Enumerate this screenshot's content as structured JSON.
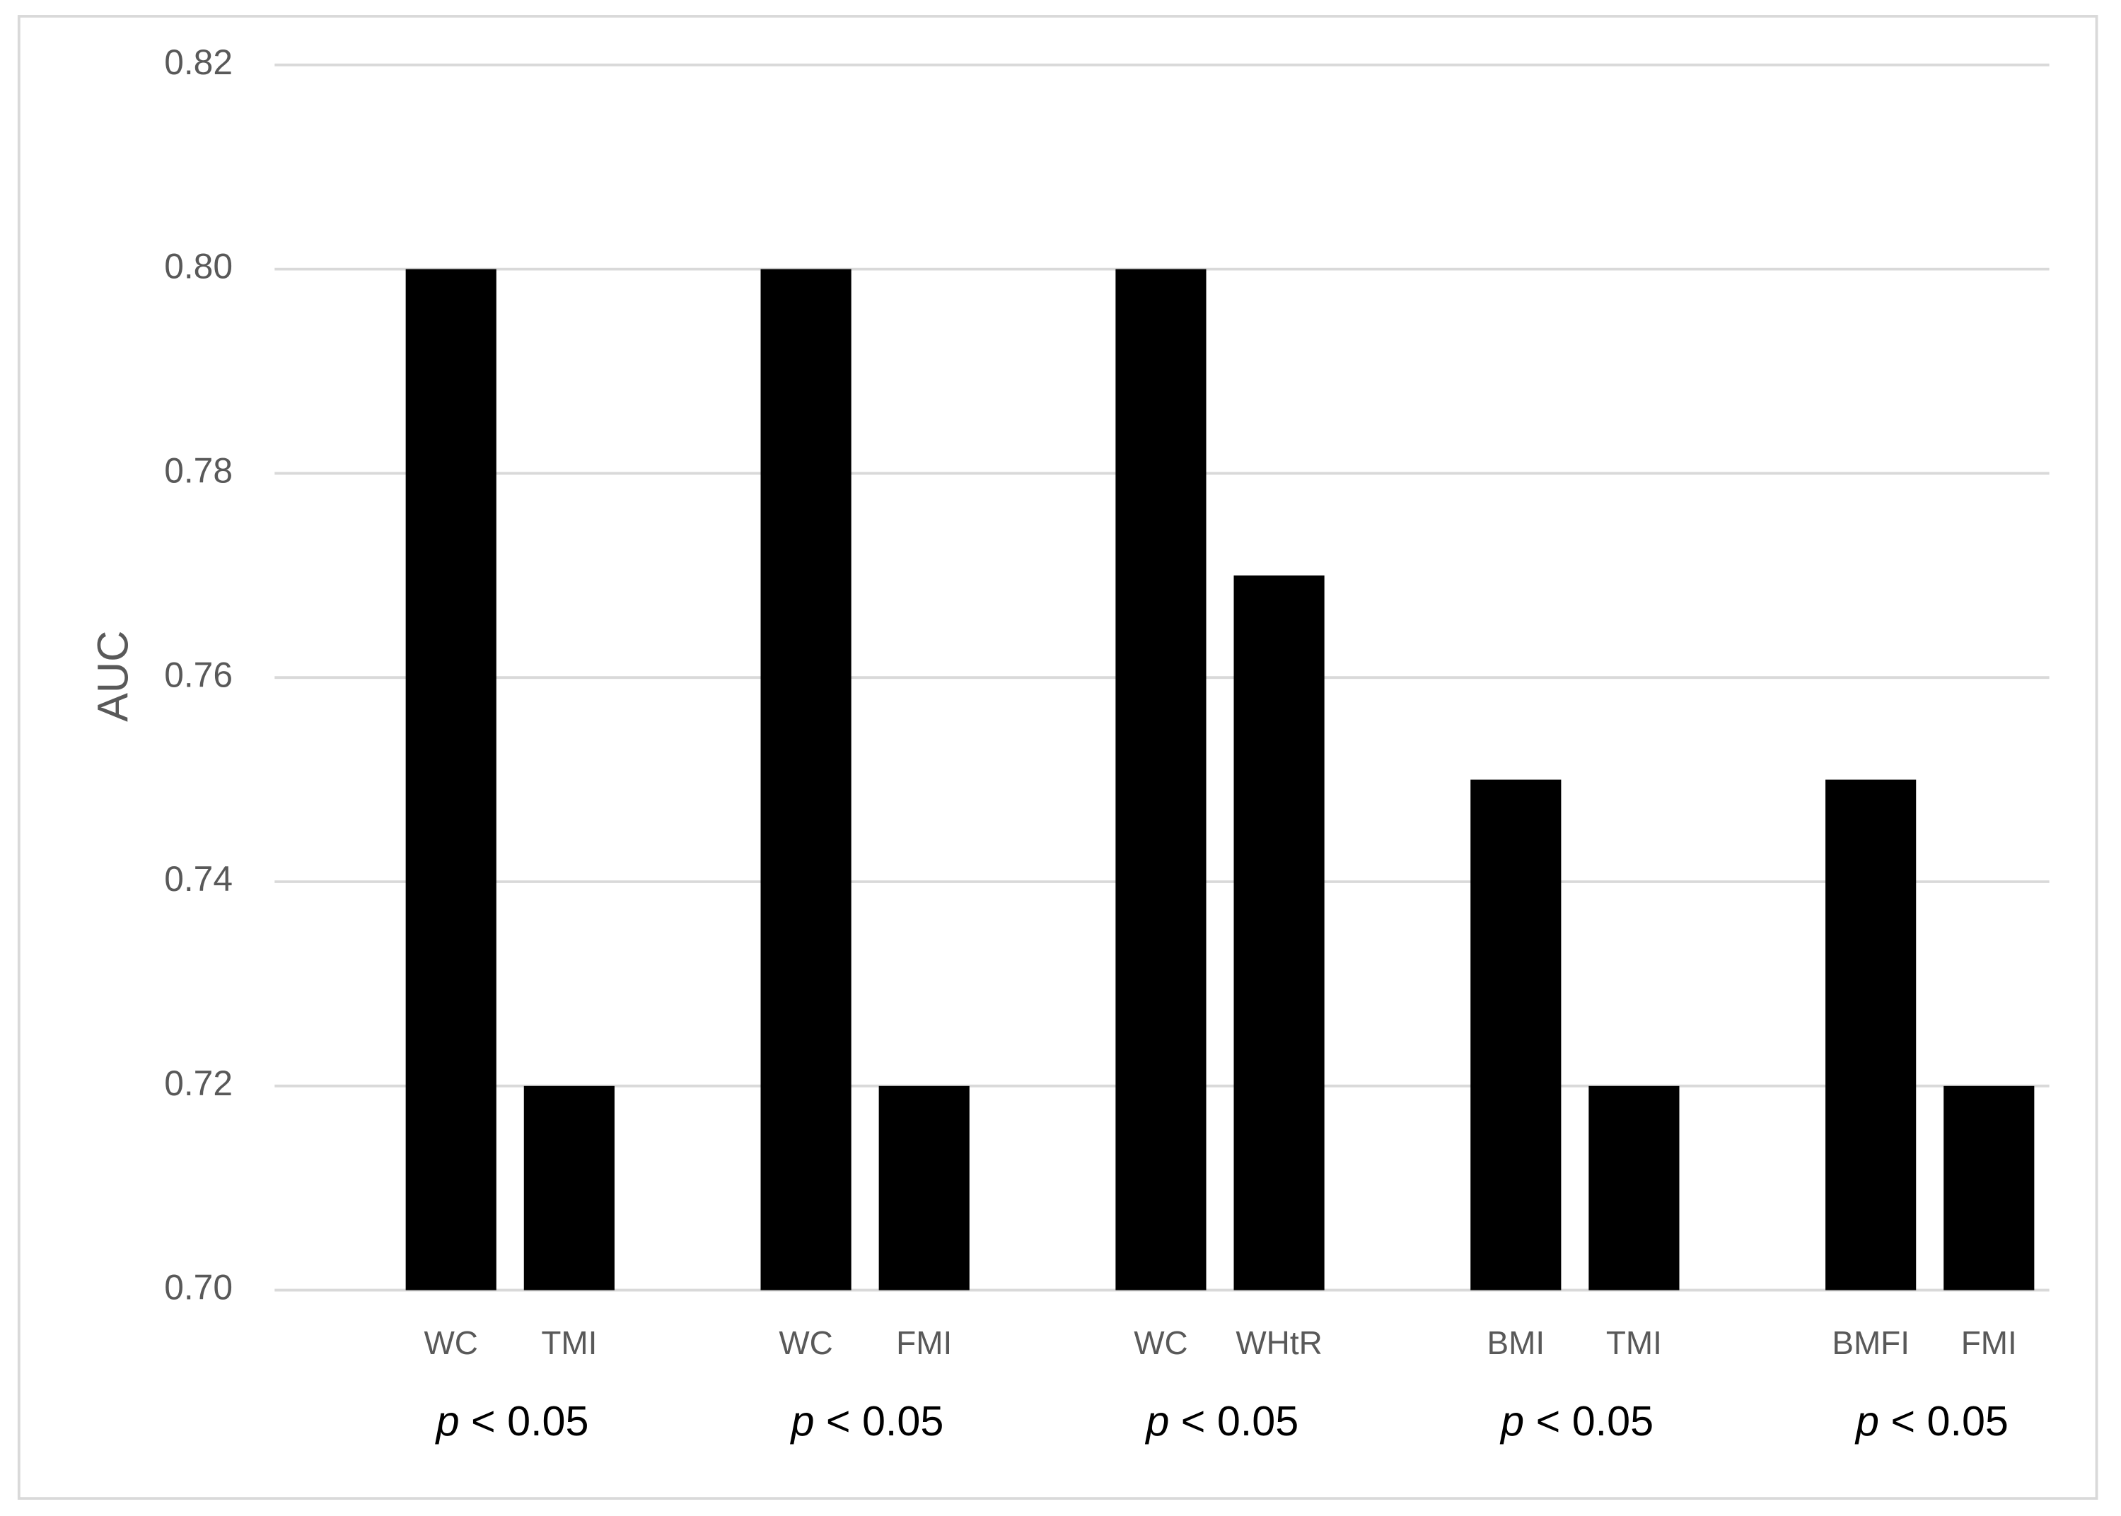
{
  "chart_data": {
    "type": "bar",
    "y_label": "AUC",
    "color": "#000000",
    "groups": [
      {
        "categories": [
          "WC",
          "TMI"
        ],
        "values": [
          0.8,
          0.72
        ],
        "label": "p < 0.05"
      },
      {
        "categories": [
          "WC",
          "FMI"
        ],
        "values": [
          0.8,
          0.72
        ],
        "label": "p < 0.05"
      },
      {
        "categories": [
          "WC",
          "WHtR"
        ],
        "values": [
          0.8,
          0.77
        ],
        "label": "p < 0.05"
      },
      {
        "categories": [
          "BMI",
          "TMI"
        ],
        "values": [
          0.75,
          0.72
        ],
        "label": "p < 0.05"
      },
      {
        "categories": [
          "BMFI",
          "FMI"
        ],
        "values": [
          0.75,
          0.72
        ],
        "label": "p < 0.05"
      }
    ],
    "ylim": [
      0.7,
      0.82
    ],
    "yticks": [
      {
        "value": 0.7,
        "label": "0.70"
      },
      {
        "value": 0.72,
        "label": "0.72"
      },
      {
        "value": 0.74,
        "label": "0.74"
      },
      {
        "value": 0.76,
        "label": "0.76"
      },
      {
        "value": 0.78,
        "label": "0.78"
      },
      {
        "value": 0.8,
        "label": "0.80"
      },
      {
        "value": 0.82,
        "label": "0.82"
      }
    ],
    "grid": true
  }
}
